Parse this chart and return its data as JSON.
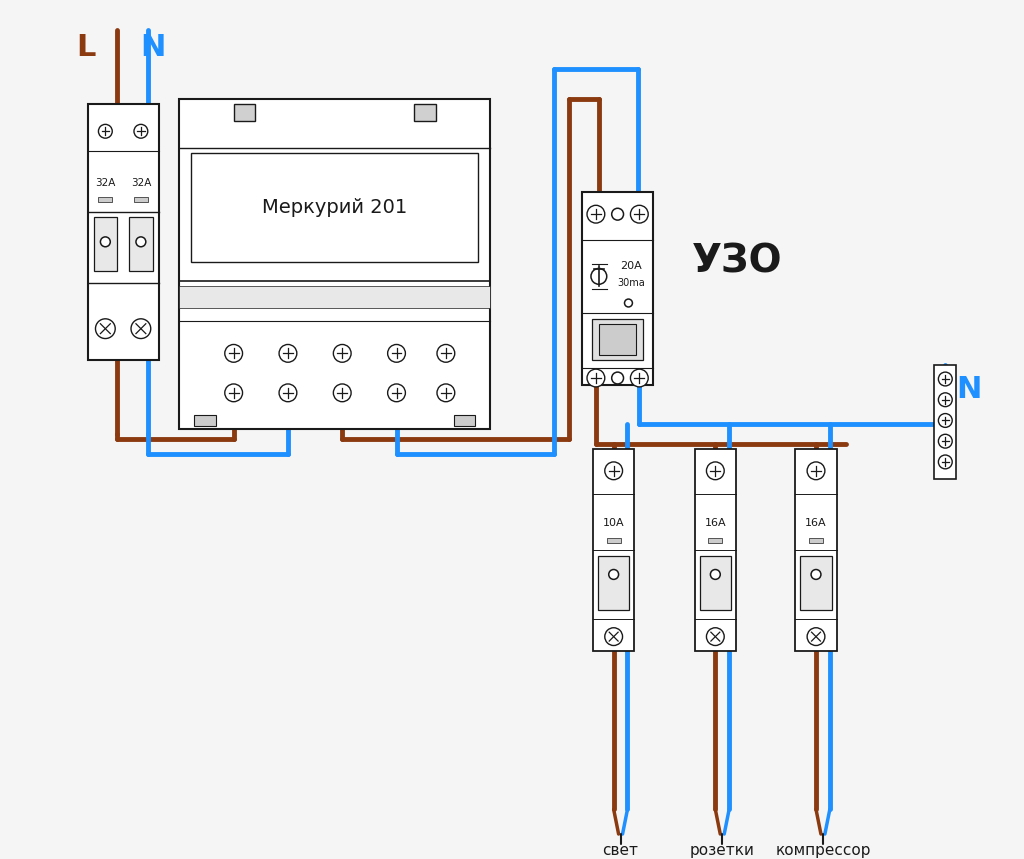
{
  "bg_color": "#f5f5f5",
  "brown": "#8B3A10",
  "blue": "#1E90FF",
  "dark": "#1a1a1a",
  "wire_lw": 3.5,
  "L_label": "L",
  "N_label": "N",
  "mercury_label": "Меркурий 201",
  "uzo_label": "УЗО",
  "breaker_32": "32А",
  "breaker_10": "10А",
  "breaker_16": "16А",
  "out_svet": "свет",
  "out_rozetki": "розетки",
  "out_kompressor": "компрессор",
  "N_right": "N"
}
